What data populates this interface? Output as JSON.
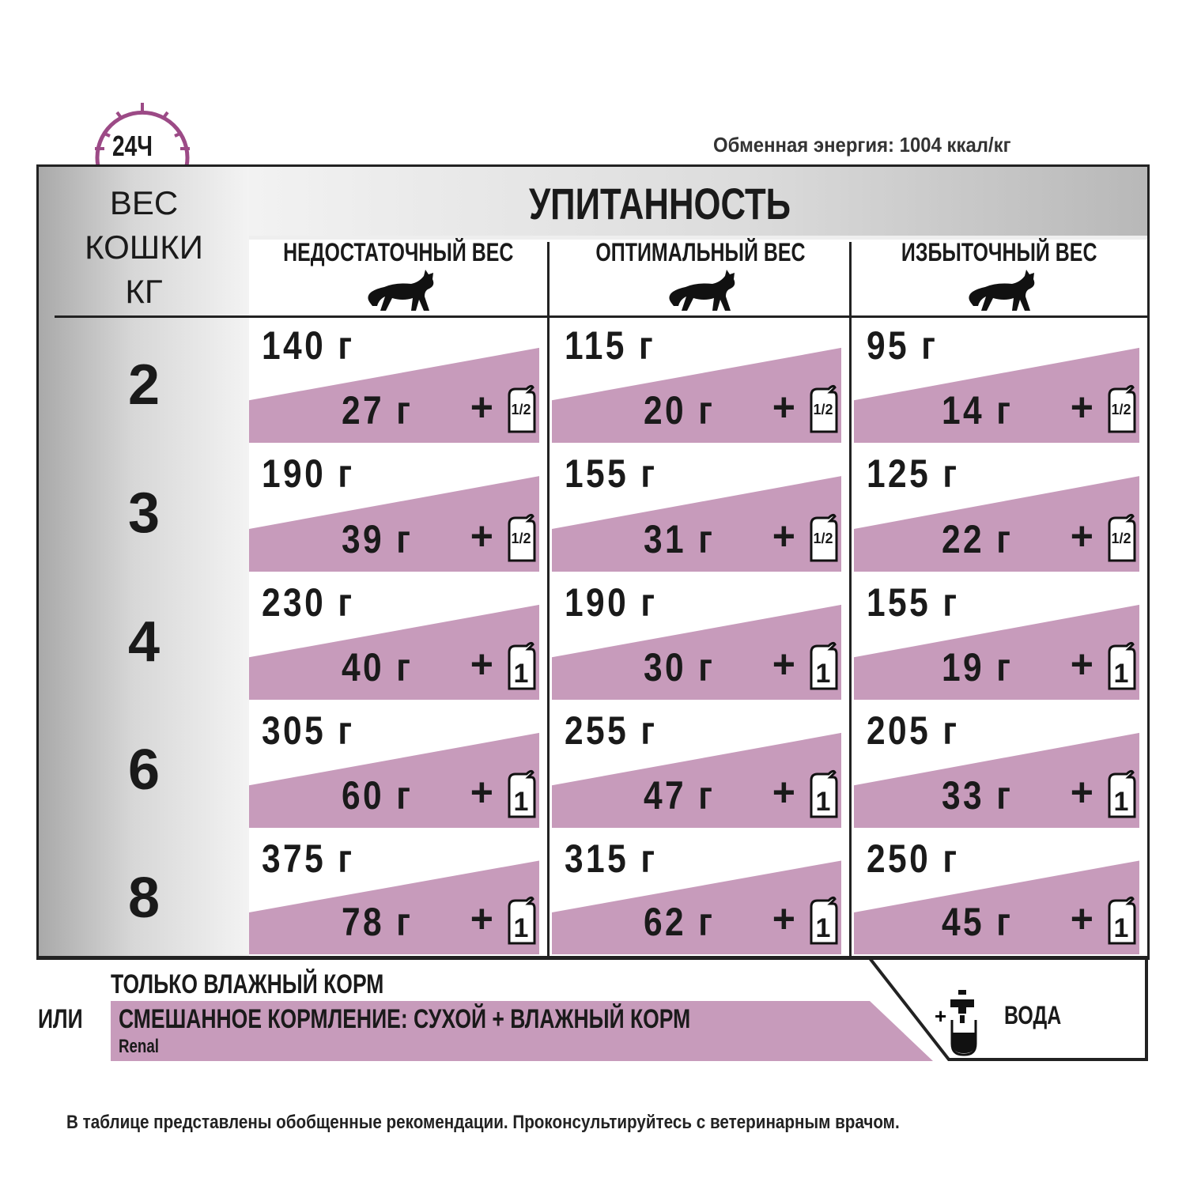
{
  "header": {
    "energy": "Обменная энергия: 1004 ккал/кг",
    "clock_label": "24Ч"
  },
  "table": {
    "title": "УПИТАННОСТЬ",
    "weight_header": [
      "ВЕС",
      "КОШКИ",
      "КГ"
    ],
    "columns": [
      "НЕДОСТАТОЧНЫЙ ВЕС",
      "ОПТИМАЛЬНЫЙ ВЕС",
      "ИЗБЫТОЧНЫЙ ВЕС"
    ],
    "rows": [
      {
        "weight": "2",
        "cells": [
          {
            "dry": "140 г",
            "wet": "27 г",
            "pouch": "1/2"
          },
          {
            "dry": "115 г",
            "wet": "20 г",
            "pouch": "1/2"
          },
          {
            "dry": "95 г",
            "wet": "14 г",
            "pouch": "1/2"
          }
        ]
      },
      {
        "weight": "3",
        "cells": [
          {
            "dry": "190 г",
            "wet": "39 г",
            "pouch": "1/2"
          },
          {
            "dry": "155 г",
            "wet": "31 г",
            "pouch": "1/2"
          },
          {
            "dry": "125 г",
            "wet": "22 г",
            "pouch": "1/2"
          }
        ]
      },
      {
        "weight": "4",
        "cells": [
          {
            "dry": "230 г",
            "wet": "40 г",
            "pouch": "1"
          },
          {
            "dry": "190 г",
            "wet": "30 г",
            "pouch": "1"
          },
          {
            "dry": "155 г",
            "wet": "19 г",
            "pouch": "1"
          }
        ]
      },
      {
        "weight": "6",
        "cells": [
          {
            "dry": "305 г",
            "wet": "60 г",
            "pouch": "1"
          },
          {
            "dry": "255 г",
            "wet": "47 г",
            "pouch": "1"
          },
          {
            "dry": "205 г",
            "wet": "33 г",
            "pouch": "1"
          }
        ]
      },
      {
        "weight": "8",
        "cells": [
          {
            "dry": "375 г",
            "wet": "78 г",
            "pouch": "1"
          },
          {
            "dry": "315 г",
            "wet": "62 г",
            "pouch": "1"
          },
          {
            "dry": "250 г",
            "wet": "45 г",
            "pouch": "1"
          }
        ]
      }
    ]
  },
  "legend": {
    "only_wet": "ТОЛЬКО ВЛАЖНЫЙ КОРМ",
    "or": "ИЛИ",
    "mixed": "СМЕШАННОЕ КОРМЛЕНИЕ: СУХОЙ + ВЛАЖНЫЙ КОРМ",
    "product": "Renal",
    "water": "ВОДА"
  },
  "footer": "В таблице представлены обобщенные рекомендации. Проконсультируйтесь с ветеринарным врачом.",
  "colors": {
    "accent": "#c79bbb",
    "clock": "#9c4a86",
    "border": "#222222"
  }
}
